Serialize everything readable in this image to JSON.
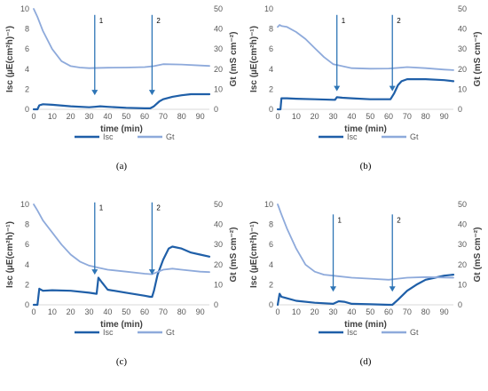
{
  "chart_data": [
    {
      "type": "line",
      "panel_label": "(a)",
      "xlabel": "time (min)",
      "ylabel_left": "Isc (µE(cm²h)⁻¹)",
      "ylabel_right": "Gt (mS cm⁻²)",
      "xlim": [
        0,
        95
      ],
      "ylim_left": [
        0,
        10
      ],
      "ylim_right": [
        0,
        50
      ],
      "xticks": [
        0,
        10,
        20,
        30,
        40,
        50,
        60,
        70,
        80,
        90
      ],
      "yticks_left": [
        0,
        2,
        4,
        6,
        8,
        10
      ],
      "yticks_right": [
        0,
        10,
        20,
        30,
        40,
        50
      ],
      "legend": [
        "Isc",
        "Gt"
      ],
      "colors": {
        "Isc": "#1f5fa8",
        "Gt": "#8eaadb",
        "arrow": "#2e75b6"
      },
      "arrows": [
        {
          "label": "1",
          "x": 33,
          "top": 9.4,
          "bottom": 1.4
        },
        {
          "label": "2",
          "x": 64,
          "top": 9.4,
          "bottom": 1.4
        }
      ],
      "series": [
        {
          "name": "Isc",
          "axis": "left",
          "x": [
            0,
            2,
            3,
            5,
            10,
            20,
            30,
            33,
            36,
            40,
            50,
            60,
            63,
            65,
            68,
            70,
            75,
            80,
            85,
            90,
            95
          ],
          "y": [
            0,
            0,
            0.4,
            0.5,
            0.45,
            0.3,
            0.2,
            0.25,
            0.3,
            0.25,
            0.15,
            0.1,
            0.1,
            0.3,
            0.8,
            1.0,
            1.25,
            1.4,
            1.5,
            1.5,
            1.5
          ]
        },
        {
          "name": "Gt",
          "axis": "right",
          "x": [
            0,
            2,
            5,
            10,
            15,
            20,
            25,
            30,
            40,
            50,
            60,
            65,
            70,
            80,
            90,
            95
          ],
          "y": [
            50,
            46,
            39,
            30,
            24,
            21.5,
            20.8,
            20.5,
            20.7,
            20.8,
            21,
            21.5,
            22.5,
            22.3,
            21.8,
            21.6
          ]
        }
      ]
    },
    {
      "type": "line",
      "panel_label": "(b)",
      "xlabel": "time (min)",
      "ylabel_left": "Isc (µE(cm²h)⁻¹)",
      "ylabel_right": "Gt (mS cm⁻²)",
      "xlim": [
        0,
        95
      ],
      "ylim_left": [
        0,
        10
      ],
      "ylim_right": [
        0,
        50
      ],
      "xticks": [
        0,
        10,
        20,
        30,
        40,
        50,
        60,
        70,
        80,
        90
      ],
      "yticks_left": [
        0,
        2,
        4,
        6,
        8,
        10
      ],
      "yticks_right": [
        0,
        10,
        20,
        30,
        40,
        50
      ],
      "legend": [
        "Isc",
        "Gt"
      ],
      "colors": {
        "Isc": "#1f5fa8",
        "Gt": "#8eaadb",
        "arrow": "#2e75b6"
      },
      "arrows": [
        {
          "label": "1",
          "x": 32,
          "top": 9.4,
          "bottom": 1.8
        },
        {
          "label": "2",
          "x": 62,
          "top": 9.4,
          "bottom": 1.8
        }
      ],
      "series": [
        {
          "name": "Isc",
          "axis": "left",
          "x": [
            0,
            1.5,
            2,
            5,
            10,
            20,
            30,
            31,
            32,
            35,
            40,
            50,
            60,
            61,
            63,
            65,
            67,
            70,
            80,
            90,
            95
          ],
          "y": [
            0,
            0,
            1.1,
            1.1,
            1.05,
            1.0,
            0.95,
            0.95,
            1.2,
            1.15,
            1.1,
            1.0,
            1.0,
            1.0,
            1.6,
            2.4,
            2.8,
            3.0,
            3.0,
            2.9,
            2.8
          ]
        },
        {
          "name": "Gt",
          "axis": "right",
          "x": [
            0,
            1,
            2,
            5,
            10,
            15,
            20,
            25,
            30,
            40,
            50,
            60,
            65,
            70,
            80,
            90,
            95
          ],
          "y": [
            41,
            42,
            41.5,
            41,
            38.5,
            35,
            30.5,
            26,
            22.5,
            20.5,
            20.2,
            20.3,
            20.6,
            21,
            20.5,
            19.8,
            19.5
          ]
        }
      ]
    },
    {
      "type": "line",
      "panel_label": "(c)",
      "xlabel": "time (min)",
      "ylabel_left": "Isc (µE(cm²h)⁻¹)",
      "ylabel_right": "Gt (mS cm⁻²)",
      "xlim": [
        0,
        95
      ],
      "ylim_left": [
        0,
        10
      ],
      "ylim_right": [
        0,
        50
      ],
      "xticks": [
        0,
        10,
        20,
        30,
        40,
        50,
        60,
        70,
        80,
        90
      ],
      "yticks_left": [
        0,
        2,
        4,
        6,
        8,
        10
      ],
      "yticks_right": [
        0,
        10,
        20,
        30,
        40,
        50
      ],
      "legend": [
        "Isc",
        "Gt"
      ],
      "colors": {
        "Isc": "#1f5fa8",
        "Gt": "#8eaadb",
        "arrow": "#2e75b6"
      },
      "arrows": [
        {
          "label": "1",
          "x": 33,
          "top": 10.2,
          "bottom": 3.0
        },
        {
          "label": "2",
          "x": 64,
          "top": 10.2,
          "bottom": 3.0
        }
      ],
      "series": [
        {
          "name": "Isc",
          "axis": "left",
          "x": [
            0,
            2,
            3,
            5,
            10,
            20,
            30,
            34,
            35,
            37,
            40,
            50,
            60,
            63,
            64,
            65,
            67,
            70,
            73,
            75,
            80,
            85,
            90,
            95
          ],
          "y": [
            0,
            0,
            1.6,
            1.4,
            1.45,
            1.4,
            1.2,
            1.1,
            2.7,
            2.2,
            1.5,
            1.2,
            0.9,
            0.8,
            0.8,
            1.4,
            3.0,
            4.5,
            5.6,
            5.8,
            5.6,
            5.2,
            5.0,
            4.8
          ]
        },
        {
          "name": "Gt",
          "axis": "right",
          "x": [
            0,
            2,
            5,
            10,
            15,
            20,
            25,
            30,
            35,
            40,
            50,
            60,
            64,
            66,
            70,
            75,
            80,
            90,
            95
          ],
          "y": [
            50,
            47,
            42,
            36,
            30,
            25,
            21.5,
            19.5,
            18.5,
            17.5,
            16.5,
            15.5,
            15.2,
            16,
            17.5,
            18,
            17.5,
            16.5,
            16.3
          ]
        }
      ]
    },
    {
      "type": "line",
      "panel_label": "(d)",
      "xlabel": "time (min)",
      "ylabel_left": "Isc (µE(cm²h)⁻¹)",
      "ylabel_right": "Gt (mS cm⁻²)",
      "xlim": [
        0,
        95
      ],
      "ylim_left": [
        0,
        10
      ],
      "ylim_right": [
        0,
        50
      ],
      "xticks": [
        0,
        10,
        20,
        30,
        40,
        50,
        60,
        70,
        80,
        90
      ],
      "yticks_left": [
        0,
        2,
        4,
        6,
        8,
        10
      ],
      "yticks_right": [
        0,
        10,
        20,
        30,
        40,
        50
      ],
      "legend": [
        "Isc",
        "Gt"
      ],
      "colors": {
        "Isc": "#1f5fa8",
        "Gt": "#8eaadb",
        "arrow": "#2e75b6"
      },
      "arrows": [
        {
          "label": "1",
          "x": 30,
          "top": 9.0,
          "bottom": 1.3
        },
        {
          "label": "2",
          "x": 62,
          "top": 9.0,
          "bottom": 1.3
        }
      ],
      "series": [
        {
          "name": "Isc",
          "axis": "left",
          "x": [
            0,
            1,
            2,
            4,
            10,
            20,
            30,
            33,
            36,
            40,
            50,
            60,
            62,
            65,
            70,
            75,
            80,
            85,
            90,
            95
          ],
          "y": [
            0,
            1.1,
            0.8,
            0.7,
            0.4,
            0.2,
            0.1,
            0.35,
            0.3,
            0.1,
            0.05,
            0.0,
            0.0,
            0.5,
            1.4,
            2.0,
            2.5,
            2.7,
            2.9,
            3.0
          ]
        },
        {
          "name": "Gt",
          "axis": "right",
          "x": [
            0,
            2,
            5,
            10,
            15,
            20,
            25,
            30,
            40,
            50,
            60,
            65,
            70,
            80,
            90,
            95
          ],
          "y": [
            50,
            45,
            38,
            28,
            20,
            16.5,
            15,
            14.5,
            13.5,
            13,
            12.5,
            13,
            13.5,
            13.8,
            13.6,
            13.5
          ]
        }
      ]
    }
  ]
}
